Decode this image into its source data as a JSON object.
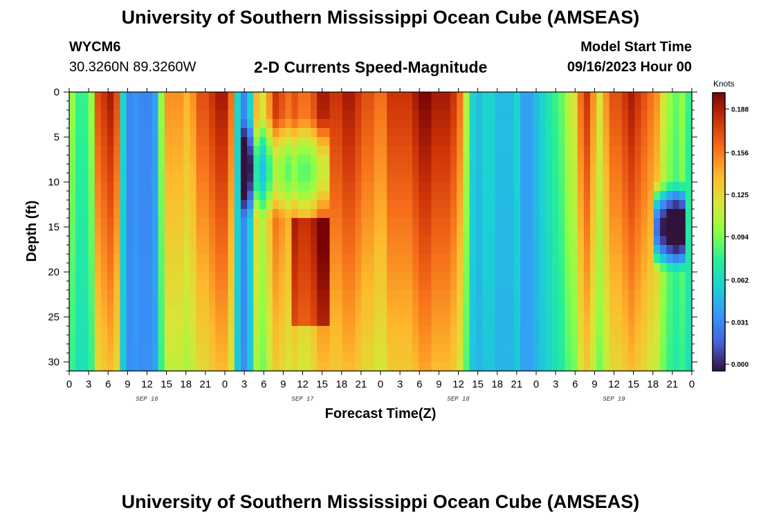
{
  "header": {
    "title": "University of Southern Mississippi Ocean Cube (AMSEAS)",
    "station_id": "WYCM6",
    "station_coords": "30.3260N  89.3260W",
    "plot_title": "2-D Currents Speed-Magnitude",
    "model_label": "Model Start Time",
    "model_time": "09/16/2023 Hour 00"
  },
  "footer": {
    "title": "University of Southern Mississippi Ocean Cube (AMSEAS)"
  },
  "chart_data": {
    "type": "heatmap",
    "title": "2-D Currents Speed-Magnitude",
    "xlabel": "Forecast Time(Z)",
    "ylabel": "Depth (ft)",
    "x_ticks": [
      "0",
      "3",
      "6",
      "9",
      "12",
      "15",
      "18",
      "21",
      "0",
      "3",
      "6",
      "9",
      "12",
      "15",
      "18",
      "21",
      "0",
      "3",
      "6",
      "9",
      "12",
      "15",
      "18",
      "21",
      "0",
      "3",
      "6",
      "9",
      "12",
      "15",
      "18",
      "21",
      "0"
    ],
    "x_hours_range": [
      0,
      96
    ],
    "day_labels": [
      {
        "label": "SEP 16",
        "hour": 12
      },
      {
        "label": "SEP 17",
        "hour": 36
      },
      {
        "label": "SEP 18",
        "hour": 60
      },
      {
        "label": "SEP 19",
        "hour": 84
      }
    ],
    "y_ticks": [
      "0",
      "5",
      "10",
      "15",
      "20",
      "25",
      "30"
    ],
    "ylim": [
      0,
      31
    ],
    "colorbar": {
      "title": "Knots",
      "ticks": [
        "0.188",
        "0.156",
        "0.125",
        "0.094",
        "0.062",
        "0.031",
        "0.000"
      ],
      "range": [
        -0.005,
        0.2
      ]
    },
    "colors": {
      "dark_blue": "#30123b",
      "dark_red": "#7a0403"
    },
    "surface_profile_knots": [
      0.1,
      0.08,
      0.08,
      0.1,
      0.17,
      0.18,
      0.19,
      0.17,
      0.06,
      0.03,
      0.035,
      0.03,
      0.03,
      0.04,
      0.1,
      0.15,
      0.15,
      0.15,
      0.14,
      0.15,
      0.17,
      0.17,
      0.18,
      0.19,
      0.19,
      0.16,
      0.06,
      0.03,
      0.06,
      0.14,
      0.12,
      0.15,
      0.18,
      0.17,
      0.16,
      0.17,
      0.16,
      0.16,
      0.17,
      0.19,
      0.19,
      0.18,
      0.18,
      0.19,
      0.19,
      0.18,
      0.17,
      0.17,
      0.16,
      0.16,
      0.18,
      0.18,
      0.18,
      0.18,
      0.19,
      0.2,
      0.2,
      0.19,
      0.19,
      0.19,
      0.18,
      0.16,
      0.11,
      0.06,
      0.05,
      0.06,
      0.06,
      0.05,
      0.05,
      0.05,
      0.06,
      0.04,
      0.04,
      0.05,
      0.06,
      0.07,
      0.08,
      0.09,
      0.11,
      0.12,
      0.16,
      0.18,
      0.15,
      0.12,
      0.15,
      0.17,
      0.17,
      0.18,
      0.19,
      0.18,
      0.17,
      0.16,
      0.15,
      0.12,
      0.1,
      0.09,
      0.1,
      0.08
    ]
  }
}
